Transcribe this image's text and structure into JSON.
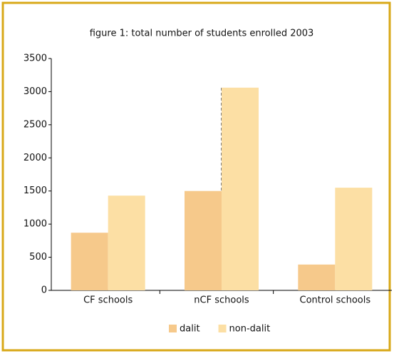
{
  "chart_data": {
    "type": "bar",
    "title": "figure 1:  total number of students enrolled 2003",
    "categories": [
      "CF schools",
      "nCF schools",
      "Control schools"
    ],
    "series": [
      {
        "name": "dalit",
        "color": "#f6c98b",
        "values": [
          870,
          1500,
          390
        ]
      },
      {
        "name": "non-dalit",
        "color": "#fcdfa4",
        "values": [
          1430,
          3060,
          1550
        ]
      }
    ],
    "ylim": [
      0,
      3500
    ],
    "yticks": [
      0,
      500,
      1000,
      1500,
      2000,
      2500,
      3000,
      3500
    ],
    "grid": false,
    "legend": "bottom"
  }
}
